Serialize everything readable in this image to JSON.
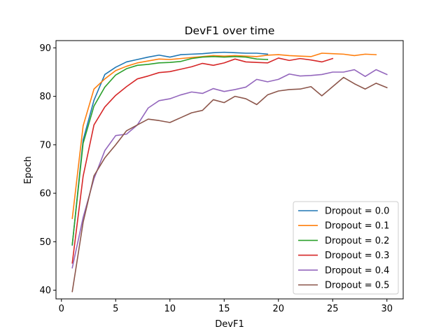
{
  "chart_data": {
    "type": "line",
    "title": "DevF1 over time",
    "xlabel": "DevF1",
    "ylabel": "Epoch",
    "xlim": [
      -0.5,
      31.5
    ],
    "ylim": [
      38.2,
      91.5
    ],
    "xticks": [
      0,
      5,
      10,
      15,
      20,
      25,
      30
    ],
    "yticks": [
      40,
      50,
      60,
      70,
      80,
      90
    ],
    "grid": false,
    "legend_position": "lower right",
    "series": [
      {
        "name": "Dropout = 0.0",
        "color": "#1f77b4",
        "x": [
          1,
          2,
          3,
          4,
          5,
          6,
          7,
          8,
          9,
          10,
          11,
          12,
          13,
          14,
          15,
          16,
          17,
          18,
          19
        ],
        "y": [
          49.3,
          71.0,
          79.2,
          84.5,
          86.0,
          87.1,
          87.6,
          88.1,
          88.5,
          88.1,
          88.6,
          88.7,
          88.8,
          89.0,
          89.1,
          89.0,
          88.9,
          88.9,
          88.7
        ]
      },
      {
        "name": "Dropout = 0.1",
        "color": "#ff7f0e",
        "x": [
          1,
          2,
          3,
          4,
          5,
          6,
          7,
          8,
          9,
          10,
          11,
          12,
          13,
          14,
          15,
          16,
          17,
          18,
          19,
          20,
          21,
          22,
          23,
          24,
          25,
          26,
          27,
          28,
          29
        ],
        "y": [
          54.8,
          73.9,
          81.5,
          83.6,
          85.3,
          86.2,
          86.9,
          87.3,
          87.7,
          87.6,
          87.8,
          88.0,
          88.2,
          88.4,
          88.3,
          88.4,
          88.3,
          88.2,
          88.5,
          88.6,
          88.4,
          88.3,
          88.2,
          88.9,
          88.8,
          88.7,
          88.4,
          88.7,
          88.6
        ]
      },
      {
        "name": "Dropout = 0.2",
        "color": "#2ca02c",
        "x": [
          1,
          2,
          3,
          4,
          5,
          6,
          7,
          8,
          9,
          10,
          11,
          12,
          13,
          14,
          15,
          16,
          17,
          18,
          19
        ],
        "y": [
          49.4,
          70.3,
          78.0,
          81.9,
          84.4,
          85.7,
          86.4,
          86.6,
          86.9,
          87.0,
          87.2,
          87.8,
          88.1,
          88.2,
          88.1,
          88.2,
          88.1,
          87.7,
          87.6
        ]
      },
      {
        "name": "Dropout = 0.3",
        "color": "#d62728",
        "x": [
          1,
          2,
          3,
          4,
          5,
          6,
          7,
          8,
          9,
          10,
          11,
          12,
          13,
          14,
          15,
          16,
          17,
          18,
          19,
          20,
          21,
          22,
          23,
          24,
          25
        ],
        "y": [
          45.6,
          63.5,
          74.1,
          77.8,
          80.2,
          82.0,
          83.6,
          84.2,
          84.9,
          85.1,
          85.6,
          86.1,
          86.8,
          86.4,
          86.9,
          87.7,
          87.1,
          87.0,
          86.9,
          87.9,
          87.4,
          87.8,
          87.5,
          87.1,
          87.8
        ]
      },
      {
        "name": "Dropout = 0.4",
        "color": "#9467bd",
        "x": [
          1,
          2,
          3,
          4,
          5,
          6,
          7,
          8,
          9,
          10,
          11,
          12,
          13,
          14,
          15,
          16,
          17,
          18,
          19,
          20,
          21,
          22,
          23,
          24,
          25,
          26,
          27,
          28,
          29,
          30
        ],
        "y": [
          44.6,
          55.0,
          63.0,
          68.8,
          71.9,
          72.2,
          74.1,
          77.6,
          79.1,
          79.5,
          80.3,
          80.9,
          80.6,
          81.6,
          81.0,
          81.4,
          81.9,
          83.5,
          83.0,
          83.5,
          84.6,
          84.2,
          84.3,
          84.5,
          85.0,
          85.0,
          85.5,
          84.1,
          85.5,
          84.5
        ]
      },
      {
        "name": "Dropout = 0.5",
        "color": "#8c564b",
        "x": [
          1,
          2,
          3,
          4,
          5,
          6,
          7,
          8,
          9,
          10,
          11,
          12,
          13,
          14,
          15,
          16,
          17,
          18,
          19,
          20,
          21,
          22,
          23,
          24,
          25,
          26,
          27,
          28,
          29,
          30
        ],
        "y": [
          39.7,
          54.0,
          63.6,
          67.3,
          70.0,
          72.9,
          74.1,
          75.3,
          75.0,
          74.6,
          75.6,
          76.6,
          77.1,
          79.3,
          78.7,
          80.0,
          79.5,
          78.3,
          80.3,
          81.1,
          81.4,
          81.5,
          82.0,
          80.1,
          82.0,
          83.9,
          82.6,
          81.5,
          82.7,
          81.8
        ]
      }
    ]
  }
}
